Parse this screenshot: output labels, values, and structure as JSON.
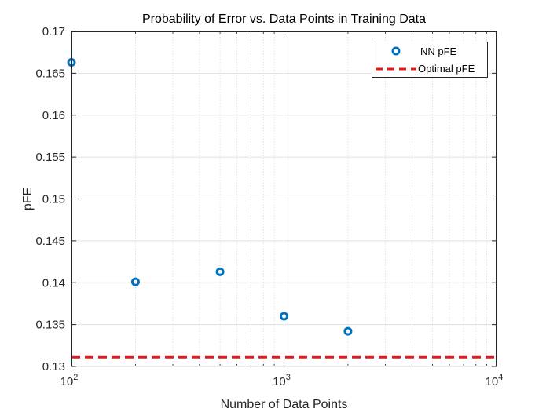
{
  "chart_data": {
    "type": "scatter",
    "title": "Probability of Error vs. Data Points in Training Data",
    "xlabel": "Number of Data Points",
    "ylabel": "pFE",
    "xscale": "log",
    "xlim": [
      100,
      10000
    ],
    "ylim": [
      0.13,
      0.17
    ],
    "grid": true,
    "minor_grid_x": true,
    "legend_position": "top-right",
    "x_ticks": [
      {
        "value": 100,
        "base": "10",
        "exp": "2"
      },
      {
        "value": 1000,
        "base": "10",
        "exp": "3"
      },
      {
        "value": 10000,
        "base": "10",
        "exp": "4"
      }
    ],
    "y_ticks": [
      {
        "value": 0.13,
        "label": "0.13"
      },
      {
        "value": 0.135,
        "label": "0.135"
      },
      {
        "value": 0.14,
        "label": "0.14"
      },
      {
        "value": 0.145,
        "label": "0.145"
      },
      {
        "value": 0.15,
        "label": "0.15"
      },
      {
        "value": 0.155,
        "label": "0.155"
      },
      {
        "value": 0.16,
        "label": "0.16"
      },
      {
        "value": 0.165,
        "label": "0.165"
      },
      {
        "value": 0.17,
        "label": "0.17"
      }
    ],
    "series": [
      {
        "name": "NN pFE",
        "kind": "markers",
        "color": "#0072BD",
        "x": [
          100,
          200,
          500,
          1000,
          2000
        ],
        "y": [
          0.1663,
          0.1401,
          0.1413,
          0.136,
          0.1342
        ]
      },
      {
        "name": "Optimal pFE",
        "kind": "hline",
        "color": "#E31A1C",
        "y": 0.1311
      }
    ]
  }
}
